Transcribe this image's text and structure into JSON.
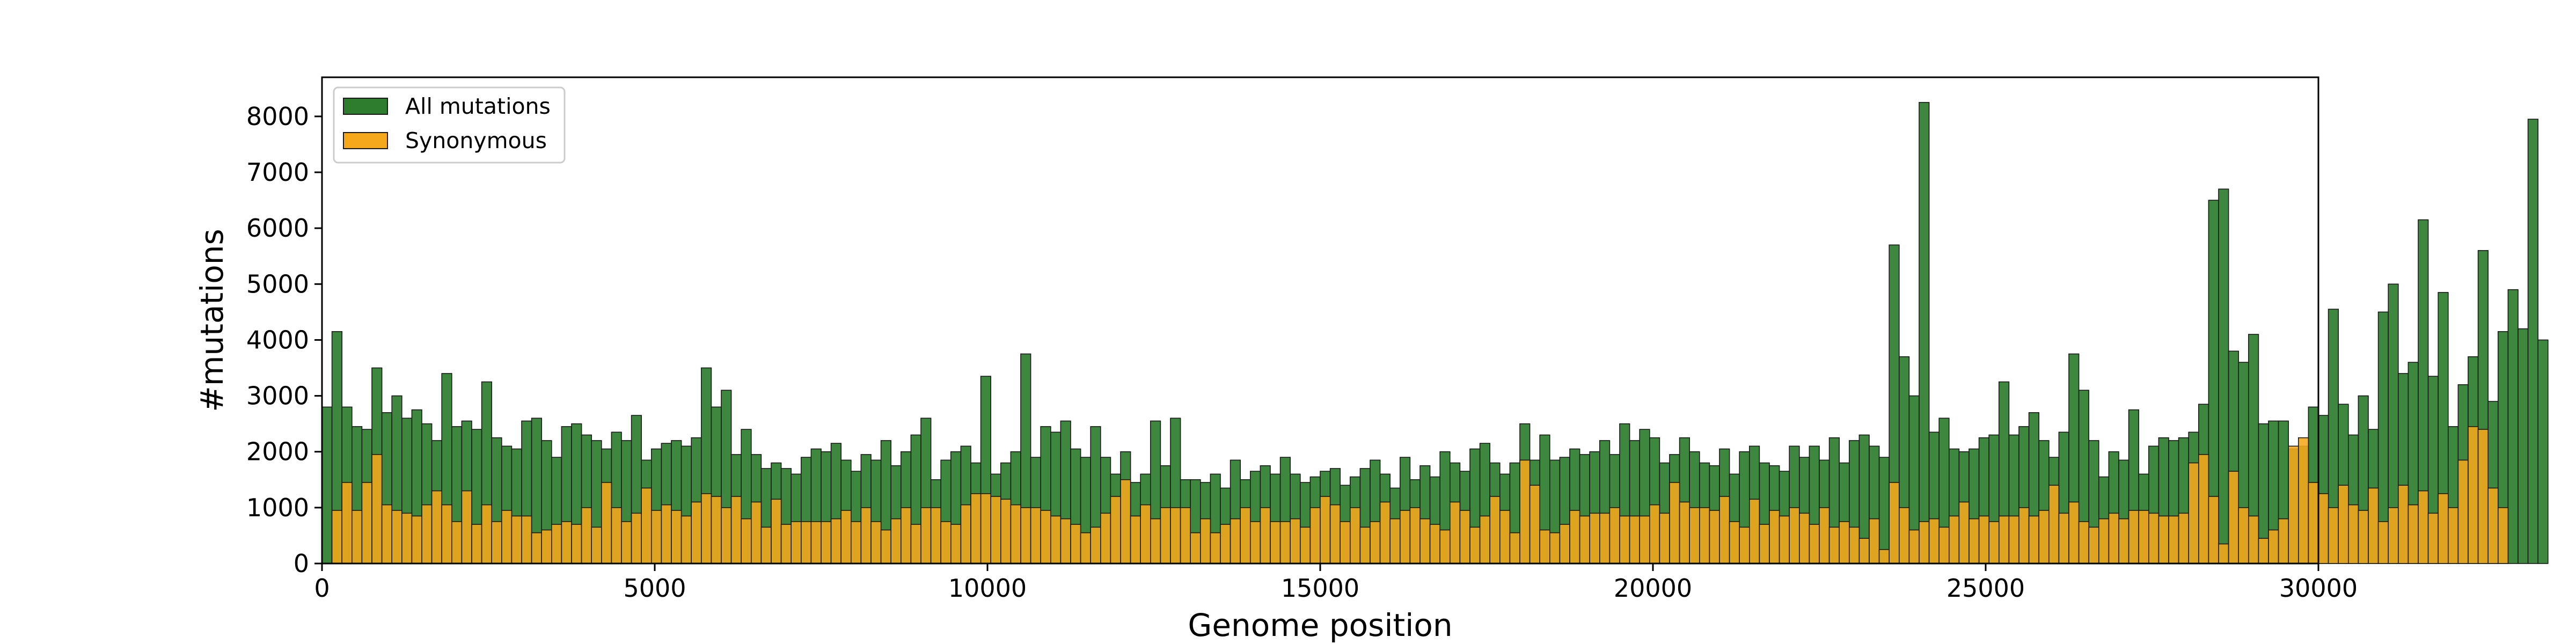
{
  "chart_data": {
    "type": "bar",
    "title": "",
    "xlabel": "Genome position",
    "ylabel": "#mutations",
    "xlim": [
      0,
      30000
    ],
    "ylim": [
      0,
      8700
    ],
    "xticks": [
      0,
      5000,
      10000,
      15000,
      20000,
      25000,
      30000
    ],
    "yticks": [
      0,
      1000,
      2000,
      3000,
      4000,
      5000,
      6000,
      7000,
      8000
    ],
    "grid": false,
    "legend_position": "upper-left",
    "bin_width": 150,
    "bin_start": 0,
    "colors": {
      "all": "#2e7d2e",
      "synonymous": "#f5a81c",
      "edge": "#1a1a1a"
    },
    "series": [
      {
        "name": "All mutations",
        "values": [
          2800,
          4150,
          2800,
          2450,
          2400,
          3500,
          2700,
          3000,
          2600,
          2750,
          2500,
          2200,
          3400,
          2450,
          2550,
          2400,
          3250,
          2250,
          2100,
          2050,
          2550,
          2600,
          2200,
          1900,
          2450,
          2500,
          2300,
          2200,
          2050,
          2350,
          2200,
          2650,
          1850,
          2050,
          2150,
          2200,
          2100,
          2250,
          3500,
          2800,
          3100,
          1950,
          2400,
          1950,
          1700,
          1800,
          1700,
          1600,
          1900,
          2050,
          2000,
          2150,
          1850,
          1650,
          1950,
          1850,
          2200,
          1750,
          2000,
          2300,
          2600,
          1500,
          1850,
          2000,
          2100,
          1800,
          3350,
          1600,
          1800,
          2000,
          3750,
          1900,
          2450,
          2350,
          2550,
          2050,
          1900,
          2450,
          1900,
          1600,
          2000,
          1450,
          1600,
          2550,
          1750,
          2600,
          1500,
          1500,
          1450,
          1600,
          1350,
          1850,
          1500,
          1650,
          1750,
          1600,
          1900,
          1600,
          1450,
          1550,
          1650,
          1700,
          1400,
          1550,
          1700,
          1850,
          1600,
          1350,
          1900,
          1500,
          1750,
          1550,
          2000,
          1800,
          1650,
          2050,
          2150,
          1800,
          1600,
          1800,
          2500,
          1850,
          2300,
          1850,
          1900,
          2050,
          1950,
          2000,
          2200,
          1950,
          2500,
          2200,
          2400,
          2250,
          1800,
          1950,
          2250,
          2000,
          1800,
          1750,
          2050,
          1600,
          2000,
          2100,
          1800,
          1750,
          1650,
          2100,
          1900,
          2100,
          1850,
          2250,
          1800,
          2200,
          2300,
          2100,
          1900,
          5700,
          3700,
          3000,
          8250,
          2350,
          2600,
          2050,
          2000,
          2050,
          2250,
          2300,
          3250,
          2300,
          2450,
          2700,
          2200,
          1900,
          2350,
          3750,
          3100,
          2200,
          1550,
          2000,
          1850,
          2750,
          1600,
          2100,
          2250,
          2200,
          2250,
          2350,
          2850,
          6500,
          6700,
          3800,
          3600,
          4100,
          2500,
          2550,
          2550,
          2050,
          2100,
          2800,
          2650,
          4550,
          2850,
          2300,
          3000,
          2400,
          4500,
          5000,
          3400,
          3600,
          6150,
          3350,
          4850,
          2450,
          3200,
          3700,
          5600,
          2900,
          4150,
          4900,
          4200,
          7950,
          4000
        ],
        "color": "#2e7d2e"
      },
      {
        "name": "Synonymous",
        "values": [
          0,
          950,
          1450,
          950,
          1450,
          1950,
          1050,
          950,
          900,
          850,
          1050,
          1300,
          1050,
          750,
          1300,
          700,
          1050,
          750,
          950,
          850,
          850,
          550,
          600,
          700,
          750,
          700,
          1000,
          650,
          1450,
          1000,
          750,
          900,
          1350,
          950,
          1050,
          950,
          850,
          1100,
          1250,
          1200,
          1000,
          1200,
          800,
          1100,
          650,
          1150,
          700,
          750,
          750,
          750,
          750,
          800,
          950,
          750,
          1000,
          750,
          600,
          800,
          1000,
          700,
          1000,
          1000,
          750,
          700,
          1050,
          1250,
          1250,
          1200,
          1150,
          1050,
          1000,
          1000,
          950,
          850,
          800,
          700,
          550,
          650,
          900,
          1200,
          1500,
          850,
          1050,
          800,
          1000,
          1000,
          1000,
          550,
          800,
          550,
          700,
          800,
          1000,
          750,
          1000,
          750,
          750,
          800,
          650,
          1000,
          1200,
          1050,
          750,
          1000,
          650,
          750,
          1100,
          800,
          950,
          1000,
          800,
          700,
          600,
          1100,
          950,
          650,
          850,
          1200,
          950,
          550,
          1850,
          1400,
          600,
          550,
          700,
          950,
          850,
          900,
          900,
          1000,
          850,
          850,
          850,
          1050,
          900,
          1450,
          1100,
          1000,
          1000,
          950,
          1200,
          750,
          650,
          1150,
          700,
          950,
          850,
          1000,
          900,
          700,
          1000,
          650,
          750,
          650,
          450,
          800,
          250,
          1450,
          1000,
          600,
          750,
          800,
          650,
          850,
          1100,
          800,
          850,
          750,
          850,
          850,
          1000,
          850,
          950,
          1400,
          900,
          1100,
          750,
          650,
          800,
          900,
          800,
          950,
          950,
          900,
          850,
          850,
          900,
          1800,
          1950,
          1200,
          350,
          1650,
          1000,
          850,
          450,
          600,
          800,
          2100,
          2250,
          1450,
          1250,
          1000,
          1400,
          1050,
          950,
          1350,
          750,
          1000,
          1400,
          1050,
          1300,
          900,
          1250,
          1000,
          1850,
          2450,
          2400,
          1350,
          1000,
          0,
          0
        ],
        "color": "#f5a81c"
      }
    ]
  }
}
